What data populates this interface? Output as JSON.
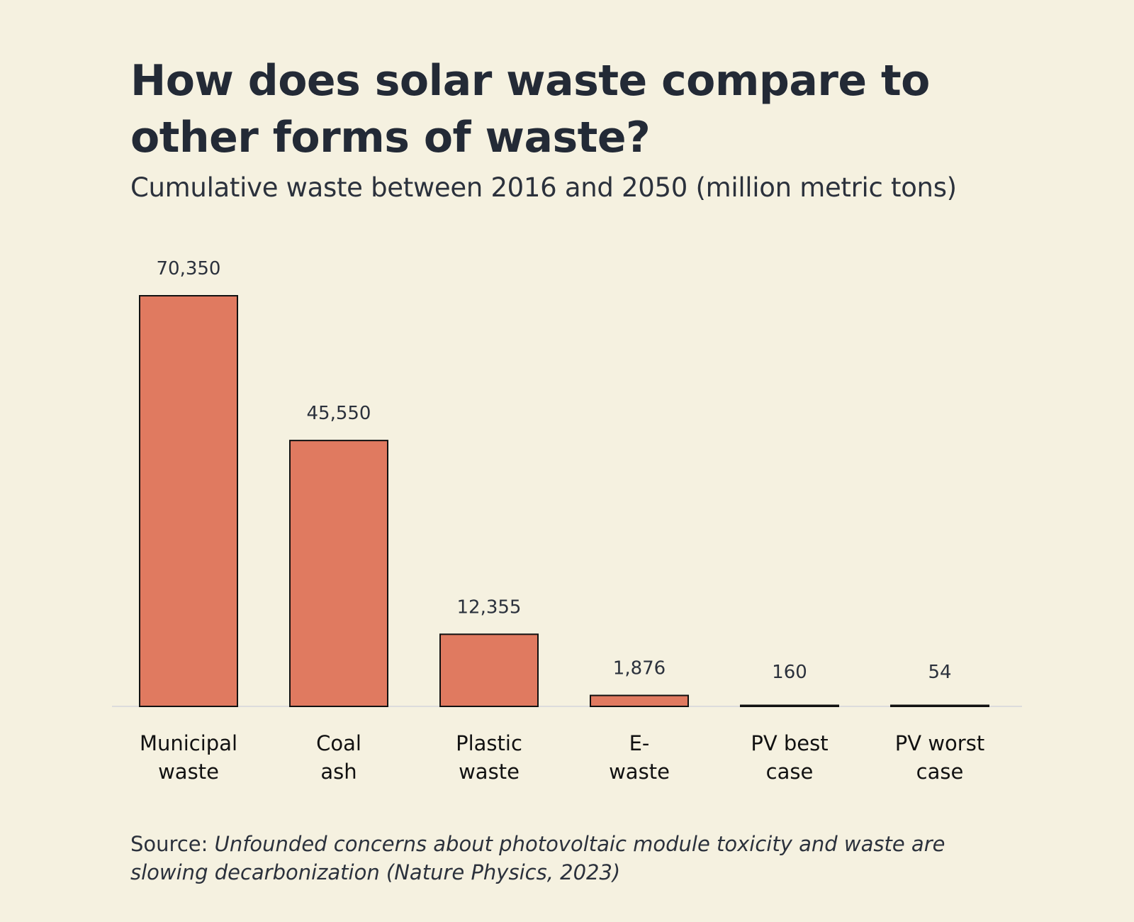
{
  "title": "How does solar waste compare to other forms of waste?",
  "subtitle": "Cumulative waste between 2016 and 2050 (million metric tons)",
  "source": {
    "label": "Source:",
    "text": "Unfounded concerns about photovoltaic module toxicity and waste are slowing decarbonization (Nature Physics, 2023)"
  },
  "colors": {
    "bar": "#e07a60",
    "bar_outline": "#111111",
    "background": "#f5f1e0",
    "baseline": "#dcdcdc"
  },
  "chart_data": {
    "type": "bar",
    "categories": [
      [
        "Municipal",
        "waste"
      ],
      [
        "Coal",
        "ash"
      ],
      [
        "Plastic",
        "waste"
      ],
      [
        "E-",
        "waste"
      ],
      [
        "PV best",
        "case"
      ],
      [
        "PV worst",
        "case"
      ]
    ],
    "values": [
      70350,
      45550,
      12355,
      1876,
      160,
      54
    ],
    "value_labels": [
      "70,350",
      "45,550",
      "12,355",
      "1,876",
      "160",
      "54"
    ],
    "title": "How does solar waste compare to other forms of waste?",
    "xlabel": "",
    "ylabel": "",
    "ylim": [
      0,
      70350
    ],
    "grid": false,
    "legend": "none"
  }
}
